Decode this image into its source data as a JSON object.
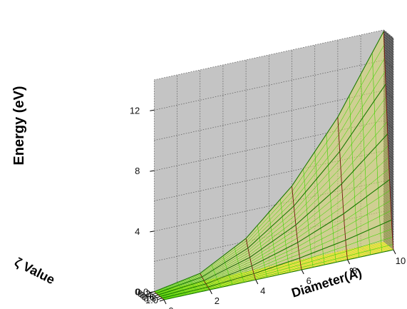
{
  "chart_data": {
    "type": "surface3d",
    "title": "",
    "zlabel": "Energy (eV)",
    "xlabel": "Diameter(Å)",
    "ylabel": "ζ Value",
    "x_ticks": [
      "0",
      "2",
      "4",
      "6",
      "8",
      "10"
    ],
    "y_ticks": [
      "0.0",
      "0.2",
      "0.4",
      "0.6",
      "0.8",
      "1.0"
    ],
    "z_ticks": [
      "0",
      "4",
      "8",
      "12"
    ],
    "xlim": [
      0,
      10
    ],
    "ylim": [
      0,
      1
    ],
    "zlim": [
      0,
      14
    ],
    "grid": true,
    "surface": {
      "diameter": [
        0,
        2,
        4,
        6,
        8,
        10
      ],
      "zeta": [
        0.0,
        0.2,
        0.4,
        0.6,
        0.8,
        1.0
      ],
      "energy_at_zeta0": [
        0.0,
        0.55,
        2.2,
        5.0,
        8.9,
        13.9
      ],
      "energy_at_zeta1": [
        0,
        0,
        0,
        0,
        0,
        0
      ]
    },
    "colors": {
      "back_wall": "#c4c4c4",
      "side_wall": "#6b6b6b",
      "floor": "#ffff00",
      "surface_fill": "#d8d86a",
      "surface_mesh": "#39d400",
      "surface_contour": "#7a1515"
    }
  }
}
